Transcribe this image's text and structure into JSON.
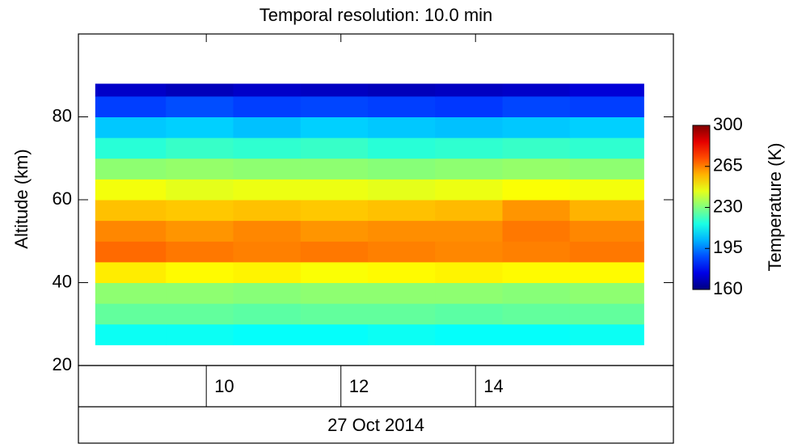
{
  "chart_data": {
    "type": "heatmap",
    "title": "Temporal resolution:   10.0 min",
    "ylabel": "Altitude (km)",
    "xlabel": "27 Oct 2014",
    "colorbar_label": "Temperature (K)",
    "colormap": "jet",
    "x": [
      8.35,
      9.4,
      10.4,
      11.4,
      12.4,
      13.4,
      14.4,
      15.4,
      16.5
    ],
    "y": [
      25,
      30,
      35,
      40,
      45,
      50,
      55,
      60,
      65,
      70,
      75,
      80,
      85,
      88
    ],
    "values": [
      [
        214,
        214,
        213,
        213,
        214,
        213,
        213,
        214
      ],
      [
        226,
        226,
        225,
        226,
        226,
        225,
        226,
        226
      ],
      [
        232,
        232,
        231,
        232,
        232,
        232,
        231,
        232
      ],
      [
        250,
        248,
        249,
        247,
        248,
        249,
        248,
        248
      ],
      [
        268,
        266,
        265,
        266,
        265,
        264,
        265,
        266
      ],
      [
        264,
        262,
        264,
        262,
        263,
        263,
        266,
        264
      ],
      [
        256,
        255,
        256,
        255,
        256,
        257,
        262,
        258
      ],
      [
        246,
        244,
        245,
        245,
        244,
        245,
        247,
        246
      ],
      [
        232,
        233,
        232,
        232,
        231,
        232,
        233,
        232
      ],
      [
        218,
        220,
        219,
        220,
        218,
        219,
        220,
        219
      ],
      [
        205,
        206,
        204,
        206,
        205,
        204,
        205,
        206
      ],
      [
        186,
        188,
        186,
        187,
        186,
        185,
        187,
        186
      ],
      [
        170,
        168,
        170,
        169,
        168,
        169,
        170,
        172
      ]
    ],
    "xlim": [
      8.1,
      16.94
    ],
    "ylim": [
      20,
      100
    ],
    "xticks": [
      10,
      12,
      14
    ],
    "yticks": [
      20,
      40,
      60,
      80
    ],
    "clim": [
      160,
      300
    ],
    "cticks": [
      160,
      195,
      230,
      265,
      300
    ]
  }
}
